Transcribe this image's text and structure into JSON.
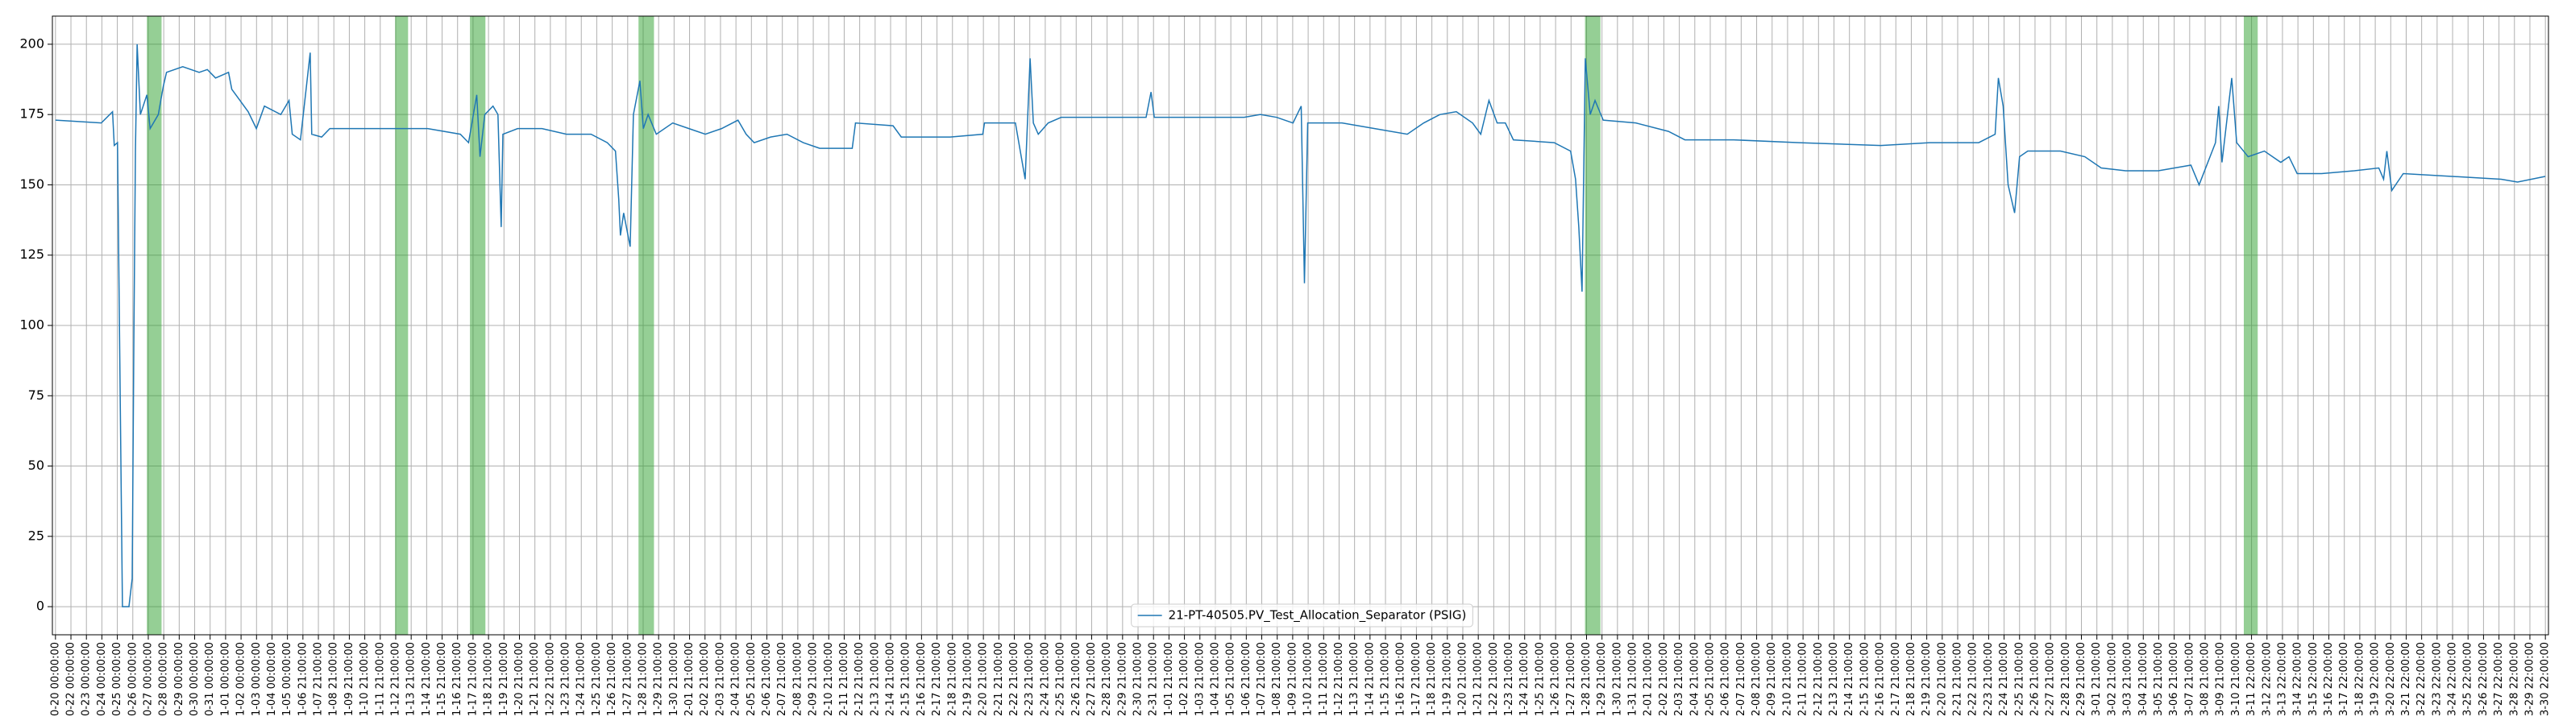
{
  "chart_data": {
    "type": "line",
    "x": [
      0,
      2.96,
      3.69,
      3.8,
      4.01,
      4.33,
      4.75,
      4.96,
      5.07,
      5.17,
      5.28,
      5.49,
      5.91,
      6.12,
      6.65,
      6.97,
      7.18,
      8.23,
      9.29,
      9.82,
      10.35,
      11.19,
      11.4,
      11.93,
      12.46,
      12.99,
      13.51,
      14.57,
      15.1,
      15.31,
      15.84,
      16.47,
      16.57,
      17.21,
      17.74,
      18.79,
      21.96,
      24.07,
      26.18,
      26.71,
      27.24,
      27.45,
      27.76,
      28.29,
      28.61,
      28.82,
      28.93,
      29.88,
      31.46,
      33.04,
      34.63,
      35.68,
      36.21,
      36.42,
      36.53,
      36.74,
      37.16,
      37.37,
      37.79,
      38.01,
      38.32,
      38.85,
      39.91,
      40.96,
      42.02,
      43.07,
      44.13,
      44.66,
      45.18,
      46.24,
      47.3,
      48.35,
      49.41,
      51.52,
      51.73,
      54.16,
      54.69,
      57.85,
      59.96,
      60.07,
      62.07,
      62.7,
      63.02,
      63.23,
      63.55,
      64.19,
      65.03,
      70.52,
      70.84,
      71.05,
      76.86,
      77.91,
      78.97,
      80.02,
      80.55,
      80.76,
      80.97,
      82.13,
      83.19,
      85.3,
      87.41,
      88.47,
      89.52,
      90.58,
      91.63,
      92.16,
      92.69,
      93.22,
      93.75,
      94.27,
      96.91,
      97.97,
      98.29,
      98.5,
      98.71,
      98.92,
      99.24,
      99.55,
      100.08,
      102.19,
      104.3,
      105.36,
      108.52,
      112.75,
      118.03,
      121.19,
      124.36,
      125.42,
      125.63,
      125.94,
      126.26,
      126.68,
      127.0,
      127.53,
      129.64,
      131.22,
      132.28,
      133.86,
      135.97,
      138.08,
      138.61,
      139.67,
      139.88,
      140.09,
      140.72,
      141.04,
      141.78,
      142.83,
      143.89,
      144.42,
      144.95,
      146.53,
      148.64,
      150.23,
      150.54,
      150.75,
      151.07,
      151.81,
      154.97,
      158.14,
      159.2,
      160.99
    ],
    "series": [
      {
        "name": "21-PT-40505.PV_Test_Allocation_Separator (PSIG)",
        "color": "#1f77b4",
        "values": [
          173,
          172,
          176,
          164,
          165,
          0,
          0,
          10,
          96,
          162,
          200,
          175,
          182,
          170,
          175,
          185,
          190,
          192,
          190,
          191,
          188,
          190,
          184,
          180,
          176,
          170,
          178,
          175,
          180,
          168,
          166,
          197,
          168,
          167,
          170,
          170,
          170,
          170,
          168,
          165,
          182,
          160,
          175,
          178,
          175,
          135,
          168,
          170,
          170,
          168,
          168,
          165,
          162,
          145,
          132,
          140,
          128,
          175,
          187,
          170,
          175,
          168,
          172,
          170,
          168,
          170,
          173,
          168,
          165,
          167,
          168,
          165,
          163,
          163,
          172,
          171,
          167,
          167,
          168,
          172,
          172,
          152,
          195,
          172,
          168,
          172,
          174,
          174,
          183,
          174,
          174,
          175,
          174,
          172,
          178,
          115,
          172,
          172,
          172,
          170,
          168,
          172,
          175,
          176,
          172,
          168,
          180,
          172,
          172,
          166,
          165,
          162,
          152,
          135,
          112,
          195,
          175,
          180,
          173,
          172,
          169,
          166,
          166,
          165,
          164,
          165,
          165,
          168,
          188,
          178,
          150,
          140,
          160,
          162,
          162,
          160,
          156,
          155,
          155,
          157,
          150,
          165,
          178,
          158,
          188,
          165,
          160,
          162,
          158,
          160,
          154,
          154,
          155,
          156,
          152,
          162,
          148,
          154,
          153,
          152,
          151,
          153
        ]
      }
    ],
    "spans": [
      [
        5.91,
        6.86
      ],
      [
        21.96,
        22.8
      ],
      [
        26.8,
        27.8
      ],
      [
        37.7,
        38.7
      ],
      [
        98.9,
        99.9
      ],
      [
        141.5,
        142.4
      ]
    ],
    "span_color": "#2ca02c",
    "ylim": [
      -10,
      210
    ],
    "yticks": [
      0,
      25,
      50,
      75,
      100,
      125,
      150,
      175,
      200
    ],
    "xlim": [
      -0.2,
      161.2
    ],
    "xticks": [
      {
        "value": 0,
        "label": "0-20 00:00:00"
      },
      {
        "value": 1,
        "label": "0-22 00:00:00"
      },
      {
        "value": 2,
        "label": "0-23 00:00:00"
      },
      {
        "value": 3,
        "label": "0-24 00:00:00"
      },
      {
        "value": 4,
        "label": "0-25 00:00:00"
      },
      {
        "value": 5,
        "label": "0-26 00:00:00"
      },
      {
        "value": 6,
        "label": "0-27 00:00:00"
      },
      {
        "value": 7,
        "label": "0-28 00:00:00"
      },
      {
        "value": 8,
        "label": "0-29 00:00:00"
      },
      {
        "value": 9,
        "label": "0-30 00:00:00"
      },
      {
        "value": 10,
        "label": "0-31 00:00:00"
      },
      {
        "value": 11,
        "label": "1-01 00:00:00"
      },
      {
        "value": 12,
        "label": "1-02 00:00:00"
      },
      {
        "value": 13,
        "label": "1-03 00:00:00"
      },
      {
        "value": 14,
        "label": "1-04 00:00:00"
      },
      {
        "value": 15,
        "label": "1-05 00:00:00"
      },
      {
        "value": 16,
        "label": "1-06 21:00:00"
      },
      {
        "value": 17,
        "label": "1-07 21:00:00"
      },
      {
        "value": 18,
        "label": "1-08 21:00:00"
      },
      {
        "value": 19,
        "label": "1-09 21:00:00"
      },
      {
        "value": 20,
        "label": "1-10 21:00:00"
      },
      {
        "value": 21,
        "label": "1-11 21:00:00"
      },
      {
        "value": 22,
        "label": "1-12 21:00:00"
      },
      {
        "value": 23,
        "label": "1-13 21:00:00"
      },
      {
        "value": 24,
        "label": "1-14 21:00:00"
      },
      {
        "value": 25,
        "label": "1-15 21:00:00"
      },
      {
        "value": 26,
        "label": "1-16 21:00:00"
      },
      {
        "value": 27,
        "label": "1-17 21:00:00"
      },
      {
        "value": 28,
        "label": "1-18 21:00:00"
      },
      {
        "value": 29,
        "label": "1-19 21:00:00"
      },
      {
        "value": 30,
        "label": "1-20 21:00:00"
      },
      {
        "value": 31,
        "label": "1-21 21:00:00"
      },
      {
        "value": 32,
        "label": "1-22 21:00:00"
      },
      {
        "value": 33,
        "label": "1-23 21:00:00"
      },
      {
        "value": 34,
        "label": "1-24 21:00:00"
      },
      {
        "value": 35,
        "label": "1-25 21:00:00"
      },
      {
        "value": 36,
        "label": "1-26 21:00:00"
      },
      {
        "value": 37,
        "label": "1-27 21:00:00"
      },
      {
        "value": 38,
        "label": "1-28 21:00:00"
      },
      {
        "value": 39,
        "label": "1-29 21:00:00"
      },
      {
        "value": 40,
        "label": "1-30 21:00:00"
      },
      {
        "value": 41,
        "label": "2-01 21:00:00"
      },
      {
        "value": 42,
        "label": "2-02 21:00:00"
      },
      {
        "value": 43,
        "label": "2-03 21:00:00"
      },
      {
        "value": 44,
        "label": "2-04 21:00:00"
      },
      {
        "value": 45,
        "label": "2-05 21:00:00"
      },
      {
        "value": 46,
        "label": "2-06 21:00:00"
      },
      {
        "value": 47,
        "label": "2-07 21:00:00"
      },
      {
        "value": 48,
        "label": "2-08 21:00:00"
      },
      {
        "value": 49,
        "label": "2-09 21:00:00"
      },
      {
        "value": 50,
        "label": "2-10 21:00:00"
      },
      {
        "value": 51,
        "label": "2-11 21:00:00"
      },
      {
        "value": 52,
        "label": "2-12 21:00:00"
      },
      {
        "value": 53,
        "label": "2-13 21:00:00"
      },
      {
        "value": 54,
        "label": "2-14 21:00:00"
      },
      {
        "value": 55,
        "label": "2-15 21:00:00"
      },
      {
        "value": 56,
        "label": "2-16 21:00:00"
      },
      {
        "value": 57,
        "label": "2-17 21:00:00"
      },
      {
        "value": 58,
        "label": "2-18 21:00:00"
      },
      {
        "value": 59,
        "label": "2-19 21:00:00"
      },
      {
        "value": 60,
        "label": "2-20 21:00:00"
      },
      {
        "value": 61,
        "label": "2-21 21:00:00"
      },
      {
        "value": 62,
        "label": "2-22 21:00:00"
      },
      {
        "value": 63,
        "label": "2-23 21:00:00"
      },
      {
        "value": 64,
        "label": "2-24 21:00:00"
      },
      {
        "value": 65,
        "label": "2-25 21:00:00"
      },
      {
        "value": 66,
        "label": "2-26 21:00:00"
      },
      {
        "value": 67,
        "label": "2-27 21:00:00"
      },
      {
        "value": 68,
        "label": "2-28 21:00:00"
      },
      {
        "value": 69,
        "label": "2-29 21:00:00"
      },
      {
        "value": 70,
        "label": "2-30 21:00:00"
      },
      {
        "value": 71,
        "label": "2-31 21:00:00"
      },
      {
        "value": 72,
        "label": "1-01 21:00:00"
      },
      {
        "value": 73,
        "label": "1-02 21:00:00"
      },
      {
        "value": 74,
        "label": "1-03 21:00:00"
      },
      {
        "value": 75,
        "label": "1-04 21:00:00"
      },
      {
        "value": 76,
        "label": "1-05 21:00:00"
      },
      {
        "value": 77,
        "label": "1-06 21:00:00"
      },
      {
        "value": 78,
        "label": "1-07 21:00:00"
      },
      {
        "value": 79,
        "label": "1-08 21:00:00"
      },
      {
        "value": 80,
        "label": "1-09 21:00:00"
      },
      {
        "value": 81,
        "label": "1-10 21:00:00"
      },
      {
        "value": 82,
        "label": "1-11 21:00:00"
      },
      {
        "value": 83,
        "label": "1-12 21:00:00"
      },
      {
        "value": 84,
        "label": "1-13 21:00:00"
      },
      {
        "value": 85,
        "label": "1-14 21:00:00"
      },
      {
        "value": 86,
        "label": "1-15 21:00:00"
      },
      {
        "value": 87,
        "label": "1-16 21:00:00"
      },
      {
        "value": 88,
        "label": "1-17 21:00:00"
      },
      {
        "value": 89,
        "label": "1-18 21:00:00"
      },
      {
        "value": 90,
        "label": "1-19 21:00:00"
      },
      {
        "value": 91,
        "label": "1-20 21:00:00"
      },
      {
        "value": 92,
        "label": "1-21 21:00:00"
      },
      {
        "value": 93,
        "label": "1-22 21:00:00"
      },
      {
        "value": 94,
        "label": "1-23 21:00:00"
      },
      {
        "value": 95,
        "label": "1-24 21:00:00"
      },
      {
        "value": 96,
        "label": "1-25 21:00:00"
      },
      {
        "value": 97,
        "label": "1-26 21:00:00"
      },
      {
        "value": 98,
        "label": "1-27 21:00:00"
      },
      {
        "value": 99,
        "label": "1-28 21:00:00"
      },
      {
        "value": 100,
        "label": "1-29 21:00:00"
      },
      {
        "value": 101,
        "label": "1-30 21:00:00"
      },
      {
        "value": 102,
        "label": "1-31 21:00:00"
      },
      {
        "value": 103,
        "label": "2-01 21:00:00"
      },
      {
        "value": 104,
        "label": "2-02 21:00:00"
      },
      {
        "value": 105,
        "label": "2-03 21:00:00"
      },
      {
        "value": 106,
        "label": "2-04 21:00:00"
      },
      {
        "value": 107,
        "label": "2-05 21:00:00"
      },
      {
        "value": 108,
        "label": "2-06 21:00:00"
      },
      {
        "value": 109,
        "label": "2-07 21:00:00"
      },
      {
        "value": 110,
        "label": "2-08 21:00:00"
      },
      {
        "value": 111,
        "label": "2-09 21:00:00"
      },
      {
        "value": 112,
        "label": "2-10 21:00:00"
      },
      {
        "value": 113,
        "label": "2-11 21:00:00"
      },
      {
        "value": 114,
        "label": "2-12 21:00:00"
      },
      {
        "value": 115,
        "label": "2-13 21:00:00"
      },
      {
        "value": 116,
        "label": "2-14 21:00:00"
      },
      {
        "value": 117,
        "label": "2-15 21:00:00"
      },
      {
        "value": 118,
        "label": "2-16 21:00:00"
      },
      {
        "value": 119,
        "label": "2-17 21:00:00"
      },
      {
        "value": 120,
        "label": "2-18 21:00:00"
      },
      {
        "value": 121,
        "label": "2-19 21:00:00"
      },
      {
        "value": 122,
        "label": "2-20 21:00:00"
      },
      {
        "value": 123,
        "label": "2-21 21:00:00"
      },
      {
        "value": 124,
        "label": "2-22 21:00:00"
      },
      {
        "value": 125,
        "label": "2-23 21:00:00"
      },
      {
        "value": 126,
        "label": "2-24 21:00:00"
      },
      {
        "value": 127,
        "label": "2-25 21:00:00"
      },
      {
        "value": 128,
        "label": "2-26 21:00:00"
      },
      {
        "value": 129,
        "label": "2-27 21:00:00"
      },
      {
        "value": 130,
        "label": "2-28 21:00:00"
      },
      {
        "value": 131,
        "label": "2-29 21:00:00"
      },
      {
        "value": 132,
        "label": "3-01 21:00:00"
      },
      {
        "value": 133,
        "label": "3-02 21:00:00"
      },
      {
        "value": 134,
        "label": "3-03 21:00:00"
      },
      {
        "value": 135,
        "label": "3-04 21:00:00"
      },
      {
        "value": 136,
        "label": "3-05 21:00:00"
      },
      {
        "value": 137,
        "label": "3-06 21:00:00"
      },
      {
        "value": 138,
        "label": "3-07 21:00:00"
      },
      {
        "value": 139,
        "label": "3-08 21:00:00"
      },
      {
        "value": 140,
        "label": "3-09 21:00:00"
      },
      {
        "value": 141,
        "label": "3-10 21:00:00"
      },
      {
        "value": 142,
        "label": "3-11 22:00:00"
      },
      {
        "value": 143,
        "label": "3-12 22:00:00"
      },
      {
        "value": 144,
        "label": "3-13 22:00:00"
      },
      {
        "value": 145,
        "label": "3-14 22:00:00"
      },
      {
        "value": 146,
        "label": "3-15 22:00:00"
      },
      {
        "value": 147,
        "label": "3-16 22:00:00"
      },
      {
        "value": 148,
        "label": "3-17 22:00:00"
      },
      {
        "value": 149,
        "label": "3-18 22:00:00"
      },
      {
        "value": 150,
        "label": "3-19 22:00:00"
      },
      {
        "value": 151,
        "label": "3-20 22:00:00"
      },
      {
        "value": 152,
        "label": "3-21 22:00:00"
      },
      {
        "value": 153,
        "label": "3-22 22:00:00"
      },
      {
        "value": 154,
        "label": "3-23 22:00:00"
      },
      {
        "value": 155,
        "label": "3-24 22:00:00"
      },
      {
        "value": 156,
        "label": "3-25 22:00:00"
      },
      {
        "value": 157,
        "label": "3-26 22:00:00"
      },
      {
        "value": 158,
        "label": "3-27 22:00:00"
      },
      {
        "value": 159,
        "label": "3-28 22:00:00"
      },
      {
        "value": 160,
        "label": "3-29 22:00:00"
      },
      {
        "value": 161,
        "label": "3-30 22:00:00"
      }
    ],
    "grid": true,
    "legend": "lower center"
  }
}
